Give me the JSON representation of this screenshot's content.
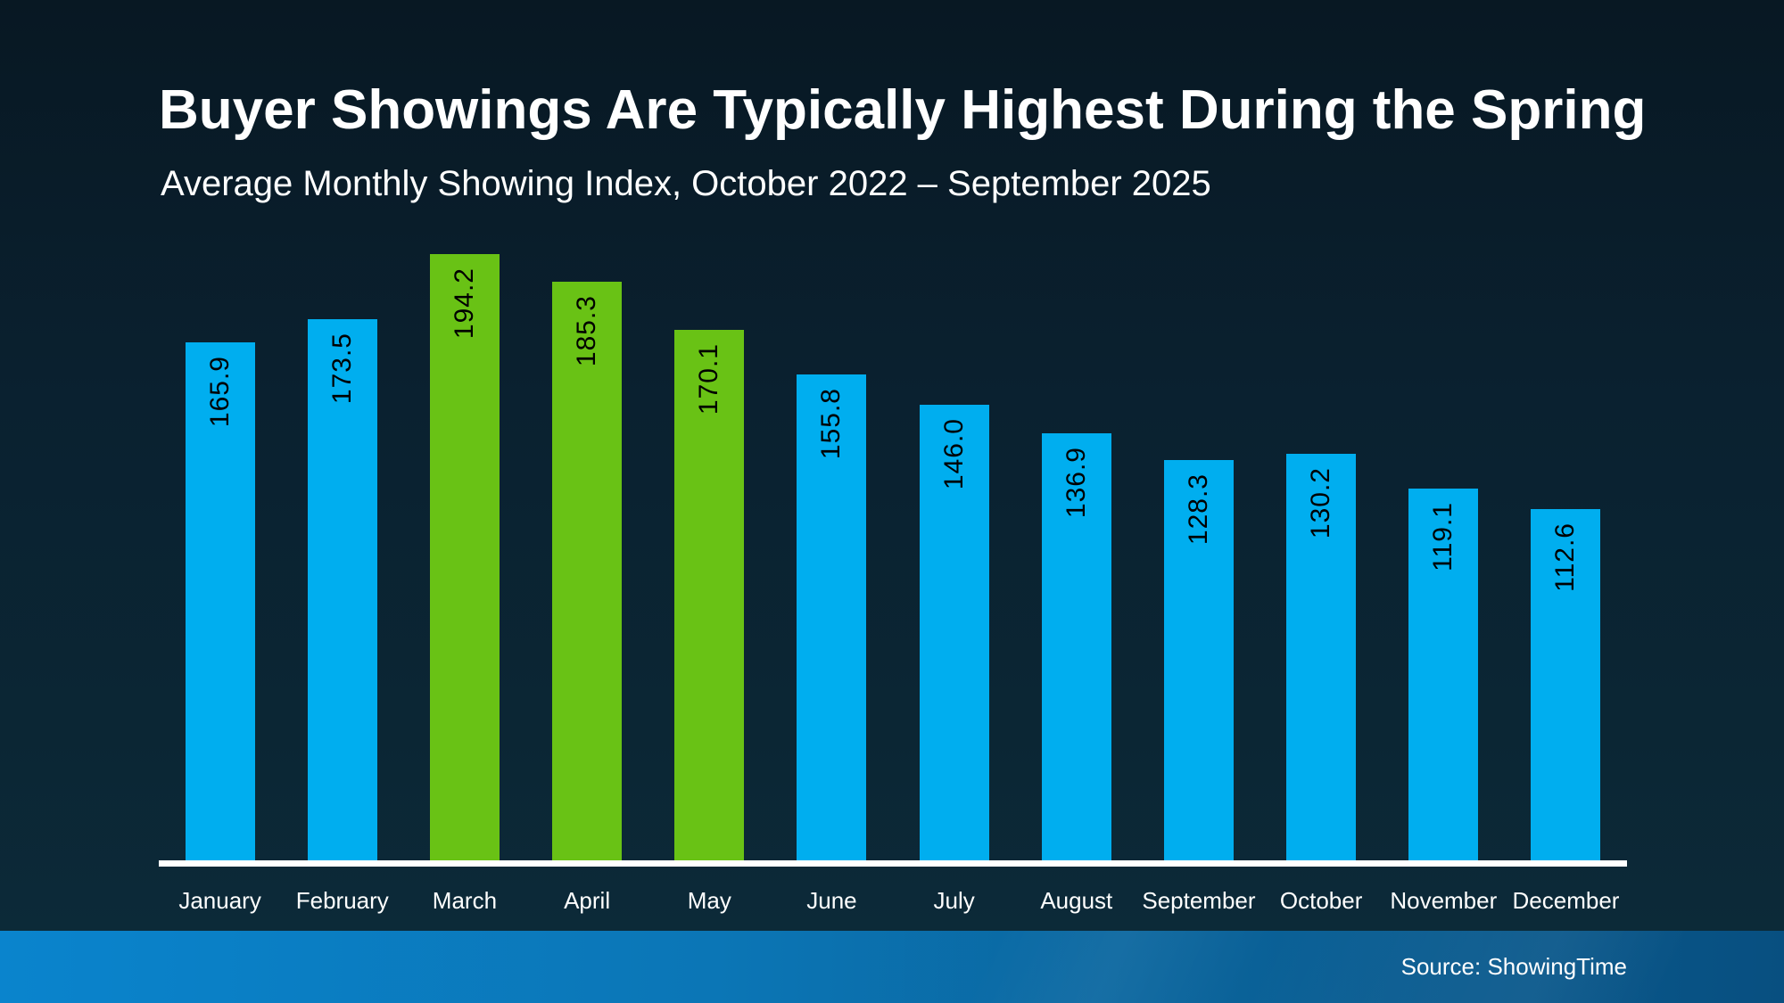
{
  "slide": {
    "title": "Buyer Showings Are Typically Highest During the Spring",
    "subtitle": "Average Monthly Showing Index, October 2022 – September 2025",
    "source": "Source: ShowingTime"
  },
  "colors": {
    "bar_blue": "#00AEEF",
    "bar_green": "#69C215",
    "value_label": "#000000",
    "axis_line": "#FFFFFF",
    "text": "#FFFFFF",
    "background_top": "#081823",
    "background_bottom": "#0C2B3A",
    "footer_gradient_left": "#0A84CD",
    "footer_gradient_right": "#084F80"
  },
  "chart_data": {
    "type": "bar",
    "title": "Buyer Showings Are Typically Highest During the Spring",
    "subtitle": "Average Monthly Showing Index, October 2022 – September 2025",
    "categories": [
      "January",
      "February",
      "March",
      "April",
      "May",
      "June",
      "July",
      "August",
      "September",
      "October",
      "November",
      "December"
    ],
    "values": [
      165.9,
      173.5,
      194.2,
      185.3,
      170.1,
      155.8,
      146.0,
      136.9,
      128.3,
      130.2,
      119.1,
      112.6
    ],
    "value_labels": [
      "165.9",
      "173.5",
      "194.2",
      "185.3",
      "170.1",
      "155.8",
      "146.0",
      "136.9",
      "128.3",
      "130.2",
      "119.1",
      "112.6"
    ],
    "highlight_months": [
      "March",
      "April",
      "May"
    ],
    "bar_label_rotation_deg": -90,
    "xlabel": "",
    "ylabel": "",
    "ylim": [
      0,
      200
    ],
    "grid": false,
    "legend": false,
    "source": "Source: ShowingTime"
  }
}
